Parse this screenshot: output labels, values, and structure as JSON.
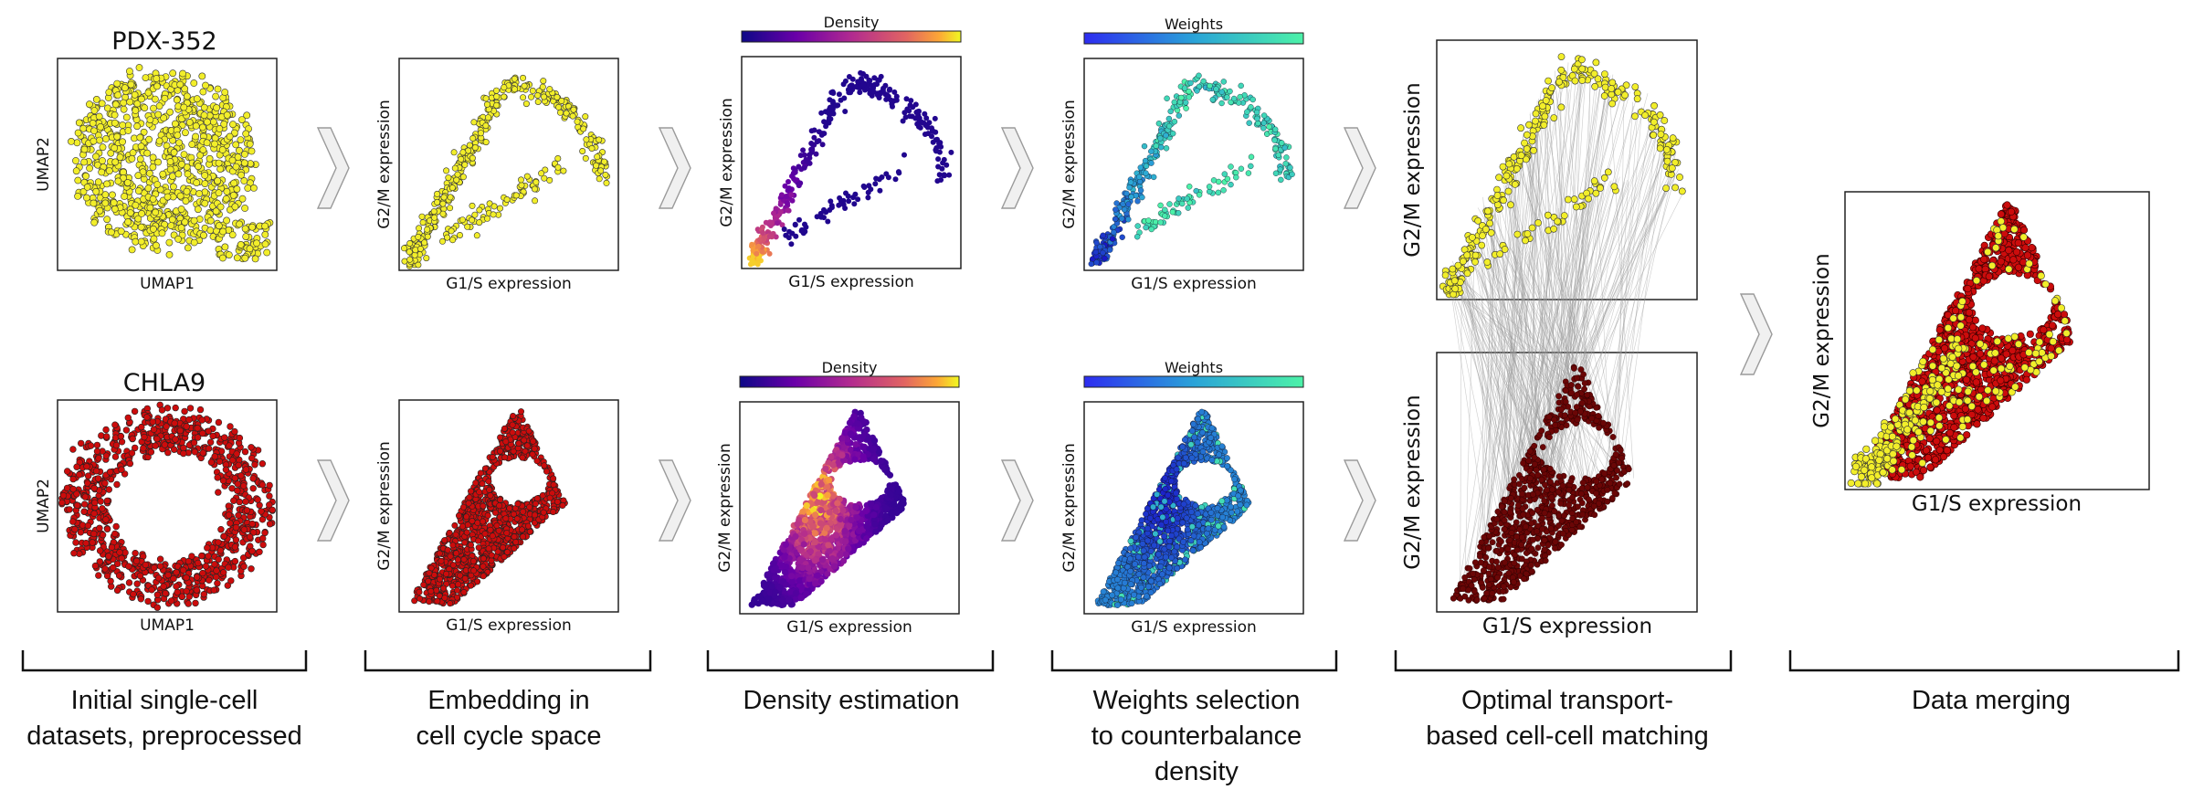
{
  "datasets": {
    "top": "PDX-352",
    "bottom": "CHLA9"
  },
  "colors": {
    "pdx": "#f2ee2a",
    "chla": "#cc0c0c",
    "chla_dark": "#6a0606",
    "match_line": "#9a9a9a"
  },
  "axes": {
    "umap_x": "UMAP1",
    "umap_y": "UMAP2",
    "g1s": "G1/S expression",
    "g2m": "G2/M expression"
  },
  "colorbars": {
    "density": "Density",
    "weights": "Weights"
  },
  "stages": [
    {
      "line1": "Initial single-cell",
      "line2": "datasets, preprocessed",
      "line3": ""
    },
    {
      "line1": "Embedding in",
      "line2": "cell cycle space",
      "line3": ""
    },
    {
      "line1": "Density estimation",
      "line2": "",
      "line3": ""
    },
    {
      "line1": "Weights selection",
      "line2": "to counterbalance",
      "line3": "density"
    },
    {
      "line1": "Optimal transport-",
      "line2": "based cell-cell matching",
      "line3": ""
    },
    {
      "line1": "Data merging",
      "line2": "",
      "line3": ""
    }
  ]
}
